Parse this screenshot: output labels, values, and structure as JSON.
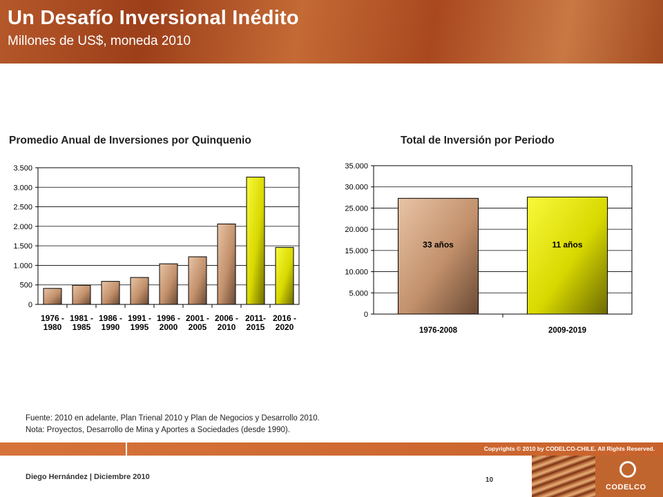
{
  "header": {
    "title": "Un Desafío Inversional Inédito",
    "subtitle": "Millones de US$, moneda 2010"
  },
  "chart_data": [
    {
      "type": "bar",
      "title": "Promedio Anual de Inversiones por Quinquenio",
      "categories": [
        [
          "1976 -",
          "1980"
        ],
        [
          "1981 -",
          "1985"
        ],
        [
          "1986 -",
          "1990"
        ],
        [
          "1991 -",
          "1995"
        ],
        [
          "1996 -",
          "2000"
        ],
        [
          "2001 -",
          "2005"
        ],
        [
          "2006 -",
          "2010"
        ],
        [
          "2011-",
          "2015"
        ],
        [
          "2016 -",
          "2020"
        ]
      ],
      "values": [
        410,
        490,
        590,
        690,
        1040,
        1220,
        2060,
        3260,
        1460
      ],
      "bar_colors": [
        "#c99a79",
        "#c99a79",
        "#c99a79",
        "#c99a79",
        "#c99a79",
        "#c99a79",
        "#c99a79",
        "#e5e600",
        "#e5e600"
      ],
      "ylim": [
        0,
        3500
      ],
      "yticks": [
        0,
        500,
        1000,
        1500,
        2000,
        2500,
        3000,
        3500
      ],
      "ytick_labels": [
        "0",
        "500",
        "1.000",
        "1.500",
        "2.000",
        "2.500",
        "3.000",
        "3.500"
      ],
      "grid": true
    },
    {
      "type": "bar",
      "title": "Total de Inversión por Periodo",
      "categories": [
        "1976-2008",
        "2009-2019"
      ],
      "values": [
        27300,
        27600
      ],
      "bar_labels": [
        "33 años",
        "11 años"
      ],
      "bar_colors": [
        "#c99a79",
        "#e5e600"
      ],
      "ylim": [
        0,
        35000
      ],
      "yticks": [
        0,
        5000,
        10000,
        15000,
        20000,
        25000,
        30000,
        35000
      ],
      "ytick_labels": [
        "0",
        "5.000",
        "10.000",
        "15.000",
        "20.000",
        "25.000",
        "30.000",
        "35.000"
      ],
      "grid": true
    }
  ],
  "notes": {
    "source": "Fuente: 2010 en adelante, Plan Trienal 2010 y Plan de Negocios y Desarrollo 2010.",
    "note": "Nota: Proyectos, Desarrollo de Mina y Aportes a Sociedades (desde 1990)."
  },
  "footer": {
    "copyright": "Copyrights © 2010 by CODELCO-CHILE. All Rights Reserved.",
    "author": "Diego Hernández | Diciembre 2010",
    "page": "10",
    "logo_text": "CODELCO"
  }
}
